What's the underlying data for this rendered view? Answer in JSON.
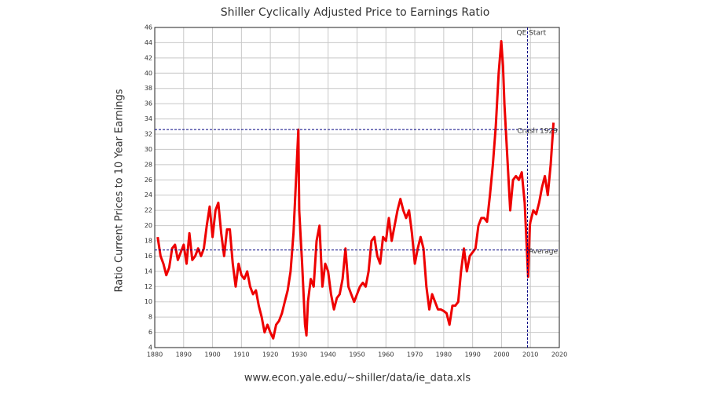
{
  "chart_data": {
    "type": "line",
    "title": "Shiller Cyclically Adjusted Price to Earnings Ratio",
    "x_label": "www.econ.yale.edu/~shiller/data/ie_data.xls",
    "y_label": "Ratio Current Prices to 10 Year Earnings",
    "color": "#ee0000",
    "grid": true,
    "xlim": [
      1880,
      2020
    ],
    "ylim": [
      4,
      46
    ],
    "xticks": [
      1880,
      1890,
      1900,
      1910,
      1920,
      1930,
      1940,
      1950,
      1960,
      1970,
      1980,
      1990,
      2000,
      2010,
      2020
    ],
    "yticks": [
      4,
      6,
      8,
      10,
      12,
      14,
      16,
      18,
      20,
      22,
      24,
      26,
      28,
      30,
      32,
      34,
      36,
      38,
      40,
      42,
      44,
      46
    ],
    "x": [
      1881,
      1882,
      1883,
      1884,
      1885,
      1886,
      1887,
      1888,
      1889,
      1890,
      1891,
      1892,
      1893,
      1894,
      1895,
      1896,
      1897,
      1898,
      1899,
      1900,
      1901,
      1902,
      1903,
      1904,
      1905,
      1906,
      1907,
      1908,
      1909,
      1910,
      1911,
      1912,
      1913,
      1914,
      1915,
      1916,
      1917,
      1918,
      1919,
      1920,
      1921,
      1922,
      1923,
      1924,
      1925,
      1926,
      1927,
      1928,
      1929,
      1929.7,
      1930,
      1931,
      1932,
      1932.5,
      1933,
      1934,
      1935,
      1936,
      1937,
      1938,
      1939,
      1940,
      1941,
      1942,
      1943,
      1944,
      1945,
      1946,
      1947,
      1948,
      1949,
      1950,
      1951,
      1952,
      1953,
      1954,
      1955,
      1956,
      1957,
      1958,
      1959,
      1960,
      1961,
      1962,
      1963,
      1964,
      1965,
      1966,
      1967,
      1968,
      1969,
      1970,
      1971,
      1972,
      1973,
      1974,
      1975,
      1976,
      1977,
      1978,
      1979,
      1980,
      1981,
      1982,
      1983,
      1984,
      1985,
      1986,
      1987,
      1988,
      1989,
      1990,
      1991,
      1992,
      1993,
      1994,
      1995,
      1996,
      1997,
      1998,
      1999,
      1999.9,
      2000.5,
      2001,
      2002,
      2003,
      2004,
      2005,
      2006,
      2007,
      2008,
      2009.2,
      2009.8,
      2010,
      2011,
      2012,
      2013,
      2014,
      2015,
      2016,
      2017,
      2018
    ],
    "values": [
      18.5,
      16,
      15,
      13.5,
      14.5,
      17,
      17.5,
      15.5,
      16.5,
      17.5,
      15,
      19,
      15.5,
      16,
      17,
      16,
      17,
      20,
      22.5,
      18.5,
      22,
      23,
      19,
      16,
      19.5,
      19.5,
      15,
      12,
      15,
      13.5,
      13,
      14,
      12,
      11,
      11.5,
      9.5,
      8,
      6,
      7,
      6,
      5.2,
      7,
      7.5,
      8.5,
      10,
      11.5,
      14,
      19,
      27,
      32.6,
      22,
      15,
      7,
      5.6,
      10,
      13,
      12,
      18,
      20,
      12,
      15,
      14,
      11,
      9,
      10.5,
      11,
      13,
      17,
      12,
      11,
      10,
      11,
      12,
      12.5,
      12,
      14,
      18,
      18.5,
      16,
      15,
      18.5,
      18,
      21,
      18,
      20,
      22,
      23.5,
      22,
      21,
      22,
      19,
      15,
      17,
      18.5,
      17,
      12,
      9,
      11,
      10,
      9,
      9,
      8.8,
      8.5,
      7,
      9.5,
      9.5,
      10,
      14,
      17,
      14,
      16,
      16.5,
      17,
      20,
      21,
      21,
      20.5,
      24,
      28,
      33,
      40,
      44.2,
      41,
      36,
      29,
      22,
      26,
      26.5,
      26,
      27,
      23,
      13.3,
      20,
      20.5,
      22,
      21.5,
      23,
      25,
      26.5,
      24,
      28,
      33.5
    ],
    "reference_lines": [
      {
        "axis": "y",
        "value": 32.6,
        "label": "Crash 1929"
      },
      {
        "axis": "y",
        "value": 16.8,
        "label": "Average"
      },
      {
        "axis": "x",
        "value": 2009,
        "label": "QE Start"
      }
    ]
  }
}
